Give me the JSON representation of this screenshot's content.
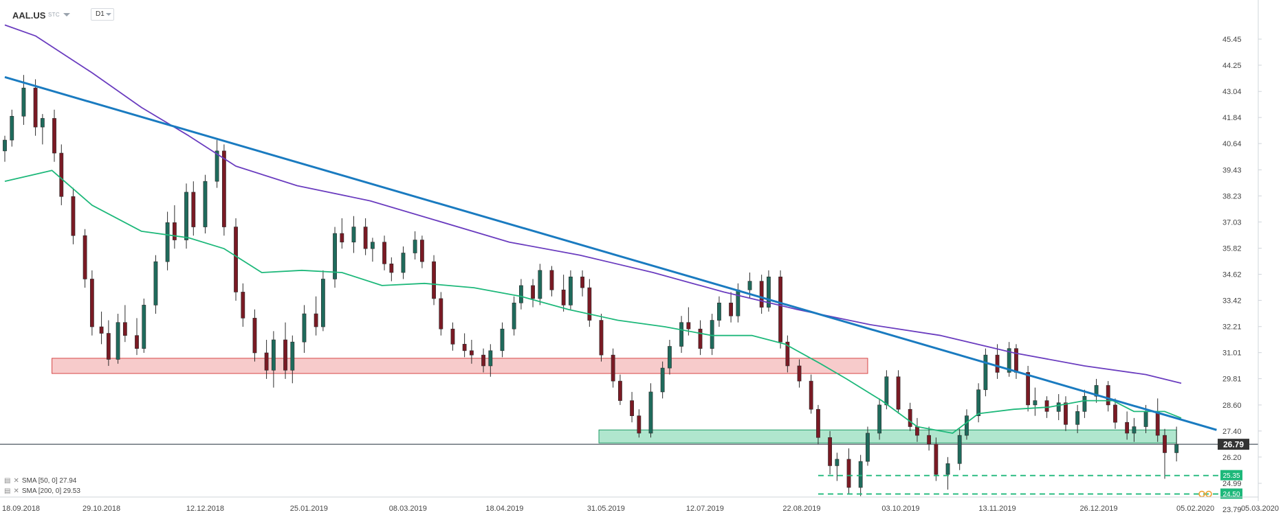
{
  "toolbar": {
    "symbol": "AAL.US",
    "symbol_sub": "STC",
    "timeframe": "D1"
  },
  "legend": {
    "sma50": "SMA [50, 0] 27.94",
    "sma200": "SMA [200, 0] 29.53"
  },
  "colors": {
    "bull": "#1f6b5c",
    "bear": "#7a1a24",
    "sma50": "#1db87a",
    "sma200": "#6a3cbf",
    "trendline": "#1a7bc0",
    "support_zone": "#6fd1a5",
    "resistance_zone": "#f0a0a0",
    "level_label": "#1db87a",
    "price_label": "#333333"
  },
  "chart_data": {
    "type": "candlestick",
    "y_ticks": [
      "45.45",
      "44.25",
      "43.04",
      "41.84",
      "40.64",
      "39.43",
      "38.23",
      "37.03",
      "35.82",
      "34.62",
      "33.42",
      "32.21",
      "31.01",
      "29.81",
      "28.60",
      "27.40",
      "26.20",
      "24.99",
      "23.79"
    ],
    "x_ticks": [
      "18.09.2018",
      "29.10.2018",
      "12.12.2018",
      "25.01.2019",
      "08.03.2019",
      "18.04.2019",
      "31.05.2019",
      "12.07.2019",
      "22.08.2019",
      "03.10.2019",
      "13.11.2019",
      "26.12.2019",
      "05.02.2020",
      "05.03.2020"
    ],
    "current_price": "26.79",
    "levels": [
      {
        "value": 25.35,
        "label": "25.35"
      },
      {
        "value": 24.5,
        "label": "24.50"
      }
    ],
    "zones": [
      {
        "name": "resistance",
        "from": "2018-10-08",
        "to": "2019-09-19",
        "low": 30.05,
        "high": 30.75
      },
      {
        "name": "support",
        "from": "2019-05-28",
        "to": "2020-01-28",
        "low": 26.85,
        "high": 27.45
      }
    ],
    "trendline": {
      "start": {
        "date": "2018-09-18",
        "value": 43.7
      },
      "end": {
        "date": "2020-02-14",
        "value": 27.45
      }
    },
    "sma50": [
      [
        "2018-09-18",
        38.9
      ],
      [
        "2018-10-08",
        39.4
      ],
      [
        "2018-10-25",
        37.8
      ],
      [
        "2018-11-15",
        36.6
      ],
      [
        "2018-12-05",
        36.3
      ],
      [
        "2018-12-20",
        35.8
      ],
      [
        "2019-01-05",
        34.7
      ],
      [
        "2019-01-22",
        34.8
      ],
      [
        "2019-02-08",
        34.7
      ],
      [
        "2019-02-25",
        34.1
      ],
      [
        "2019-03-15",
        34.2
      ],
      [
        "2019-04-05",
        34.0
      ],
      [
        "2019-04-25",
        33.6
      ],
      [
        "2019-05-15",
        33.0
      ],
      [
        "2019-06-05",
        32.5
      ],
      [
        "2019-06-25",
        32.2
      ],
      [
        "2019-07-15",
        31.8
      ],
      [
        "2019-08-01",
        31.8
      ],
      [
        "2019-08-15",
        31.4
      ],
      [
        "2019-08-30",
        30.5
      ],
      [
        "2019-09-10",
        29.8
      ],
      [
        "2019-09-25",
        28.8
      ],
      [
        "2019-10-10",
        27.6
      ],
      [
        "2019-10-25",
        27.3
      ],
      [
        "2019-11-05",
        28.2
      ],
      [
        "2019-11-20",
        28.4
      ],
      [
        "2019-12-05",
        28.5
      ],
      [
        "2019-12-20",
        28.8
      ],
      [
        "2020-01-01",
        28.8
      ],
      [
        "2020-01-10",
        28.3
      ],
      [
        "2020-01-23",
        28.3
      ],
      [
        "2020-01-30",
        28.0
      ]
    ],
    "sma200": [
      [
        "2018-09-18",
        46.1
      ],
      [
        "2018-10-01",
        45.6
      ],
      [
        "2018-10-25",
        43.9
      ],
      [
        "2018-11-15",
        42.3
      ],
      [
        "2018-12-05",
        41.0
      ],
      [
        "2018-12-25",
        39.6
      ],
      [
        "2019-01-20",
        38.7
      ],
      [
        "2019-02-20",
        38.0
      ],
      [
        "2019-03-20",
        37.1
      ],
      [
        "2019-04-20",
        36.1
      ],
      [
        "2019-05-20",
        35.5
      ],
      [
        "2019-06-20",
        34.7
      ],
      [
        "2019-07-20",
        33.8
      ],
      [
        "2019-08-20",
        33.0
      ],
      [
        "2019-09-20",
        32.3
      ],
      [
        "2019-10-20",
        31.8
      ],
      [
        "2019-11-20",
        31.0
      ],
      [
        "2019-12-20",
        30.4
      ],
      [
        "2020-01-15",
        30.0
      ],
      [
        "2020-01-30",
        29.6
      ]
    ],
    "ohlc": [
      [
        "2018-09-18",
        40.3,
        41.0,
        39.8,
        40.8
      ],
      [
        "2018-09-21",
        40.8,
        42.2,
        40.5,
        41.9
      ],
      [
        "2018-09-26",
        41.9,
        43.8,
        41.5,
        43.2
      ],
      [
        "2018-10-01",
        43.2,
        43.6,
        41.0,
        41.4
      ],
      [
        "2018-10-04",
        41.4,
        42.0,
        40.6,
        41.8
      ],
      [
        "2018-10-09",
        41.8,
        42.2,
        39.8,
        40.2
      ],
      [
        "2018-10-12",
        40.2,
        40.6,
        37.8,
        38.2
      ],
      [
        "2018-10-17",
        38.2,
        38.6,
        36.0,
        36.4
      ],
      [
        "2018-10-22",
        36.4,
        36.7,
        34.0,
        34.4
      ],
      [
        "2018-10-25",
        34.4,
        34.8,
        31.8,
        32.2
      ],
      [
        "2018-10-29",
        32.2,
        32.9,
        31.4,
        31.9
      ],
      [
        "2018-11-01",
        31.9,
        32.5,
        30.4,
        30.7
      ],
      [
        "2018-11-05",
        30.7,
        32.8,
        30.5,
        32.4
      ],
      [
        "2018-11-08",
        32.4,
        33.2,
        31.5,
        31.8
      ],
      [
        "2018-11-13",
        31.8,
        32.6,
        30.9,
        31.2
      ],
      [
        "2018-11-16",
        31.2,
        33.5,
        31.0,
        33.2
      ],
      [
        "2018-11-21",
        33.2,
        35.5,
        32.8,
        35.2
      ],
      [
        "2018-11-26",
        35.2,
        37.5,
        34.8,
        37.0
      ],
      [
        "2018-11-29",
        37.0,
        37.8,
        35.8,
        36.2
      ],
      [
        "2018-12-04",
        36.2,
        38.8,
        35.8,
        38.4
      ],
      [
        "2018-12-07",
        38.4,
        38.9,
        36.4,
        36.8
      ],
      [
        "2018-12-12",
        36.8,
        39.2,
        36.5,
        38.9
      ],
      [
        "2018-12-17",
        38.9,
        40.8,
        38.6,
        40.3
      ],
      [
        "2018-12-20",
        40.3,
        40.6,
        36.4,
        36.8
      ],
      [
        "2018-12-25",
        36.8,
        37.2,
        33.4,
        33.8
      ],
      [
        "2018-12-28",
        33.8,
        34.2,
        32.2,
        32.6
      ],
      [
        "2019-01-02",
        32.6,
        33.0,
        30.6,
        31.0
      ],
      [
        "2019-01-07",
        31.0,
        31.6,
        29.8,
        30.2
      ],
      [
        "2019-01-10",
        30.2,
        32.0,
        29.4,
        31.6
      ],
      [
        "2019-01-15",
        31.6,
        32.4,
        29.8,
        30.2
      ],
      [
        "2019-01-18",
        30.2,
        31.8,
        29.6,
        31.5
      ],
      [
        "2019-01-23",
        31.5,
        33.2,
        31.0,
        32.8
      ],
      [
        "2019-01-28",
        32.8,
        33.6,
        31.8,
        32.2
      ],
      [
        "2019-01-31",
        32.2,
        34.8,
        32.0,
        34.4
      ],
      [
        "2019-02-05",
        34.4,
        36.8,
        34.0,
        36.5
      ],
      [
        "2019-02-08",
        36.5,
        37.2,
        35.8,
        36.1
      ],
      [
        "2019-02-13",
        36.1,
        37.3,
        35.6,
        36.8
      ],
      [
        "2019-02-18",
        36.8,
        37.2,
        35.5,
        35.8
      ],
      [
        "2019-02-21",
        35.8,
        36.3,
        35.2,
        36.1
      ],
      [
        "2019-02-26",
        36.1,
        36.4,
        34.8,
        35.1
      ],
      [
        "2019-03-01",
        35.1,
        35.4,
        34.3,
        34.7
      ],
      [
        "2019-03-06",
        34.7,
        35.9,
        34.4,
        35.6
      ],
      [
        "2019-03-11",
        35.6,
        36.6,
        35.3,
        36.2
      ],
      [
        "2019-03-14",
        36.2,
        36.4,
        34.9,
        35.2
      ],
      [
        "2019-03-19",
        35.2,
        35.5,
        33.2,
        33.5
      ],
      [
        "2019-03-22",
        33.5,
        33.8,
        31.8,
        32.1
      ],
      [
        "2019-03-27",
        32.1,
        32.4,
        31.1,
        31.4
      ],
      [
        "2019-04-01",
        31.4,
        31.9,
        30.8,
        31.1
      ],
      [
        "2019-04-04",
        31.1,
        31.6,
        30.5,
        30.9
      ],
      [
        "2019-04-09",
        30.9,
        31.2,
        30.1,
        30.4
      ],
      [
        "2019-04-12",
        30.4,
        31.4,
        29.9,
        31.1
      ],
      [
        "2019-04-17",
        31.1,
        32.4,
        30.8,
        32.1
      ],
      [
        "2019-04-22",
        32.1,
        33.6,
        31.8,
        33.3
      ],
      [
        "2019-04-25",
        33.3,
        34.4,
        33.0,
        34.1
      ],
      [
        "2019-04-30",
        34.1,
        34.4,
        33.1,
        33.5
      ],
      [
        "2019-05-03",
        33.5,
        35.1,
        33.2,
        34.8
      ],
      [
        "2019-05-08",
        34.8,
        35.0,
        33.6,
        33.9
      ],
      [
        "2019-05-13",
        33.9,
        34.6,
        32.9,
        33.2
      ],
      [
        "2019-05-16",
        33.2,
        34.8,
        33.0,
        34.5
      ],
      [
        "2019-05-21",
        34.5,
        34.8,
        33.6,
        34.0
      ],
      [
        "2019-05-24",
        34.0,
        34.4,
        32.2,
        32.5
      ],
      [
        "2019-05-29",
        32.5,
        32.8,
        30.6,
        30.9
      ],
      [
        "2019-06-03",
        30.9,
        31.2,
        29.4,
        29.7
      ],
      [
        "2019-06-06",
        29.7,
        30.0,
        28.6,
        28.8
      ],
      [
        "2019-06-11",
        28.8,
        29.2,
        27.8,
        28.1
      ],
      [
        "2019-06-14",
        28.1,
        28.4,
        27.1,
        27.3
      ],
      [
        "2019-06-19",
        27.3,
        29.6,
        27.1,
        29.2
      ],
      [
        "2019-06-24",
        29.2,
        30.6,
        28.9,
        30.3
      ],
      [
        "2019-06-27",
        30.3,
        31.6,
        30.0,
        31.3
      ],
      [
        "2019-07-02",
        31.3,
        32.7,
        31.0,
        32.4
      ],
      [
        "2019-07-05",
        32.4,
        33.1,
        31.8,
        32.1
      ],
      [
        "2019-07-10",
        32.1,
        32.5,
        30.9,
        31.2
      ],
      [
        "2019-07-15",
        31.2,
        32.8,
        30.9,
        32.5
      ],
      [
        "2019-07-18",
        32.5,
        33.6,
        32.2,
        33.3
      ],
      [
        "2019-07-23",
        33.3,
        33.8,
        32.4,
        32.7
      ],
      [
        "2019-07-26",
        32.7,
        34.2,
        32.4,
        33.9
      ],
      [
        "2019-07-31",
        33.9,
        34.7,
        33.5,
        34.3
      ],
      [
        "2019-08-05",
        34.3,
        34.6,
        32.8,
        33.1
      ],
      [
        "2019-08-08",
        33.1,
        34.8,
        32.9,
        34.5
      ],
      [
        "2019-08-13",
        34.5,
        34.8,
        31.2,
        31.5
      ],
      [
        "2019-08-16",
        31.5,
        31.8,
        30.1,
        30.4
      ],
      [
        "2019-08-21",
        30.4,
        30.7,
        29.4,
        29.7
      ],
      [
        "2019-08-26",
        29.7,
        30.0,
        28.2,
        28.4
      ],
      [
        "2019-08-29",
        28.4,
        28.6,
        26.8,
        27.1
      ],
      [
        "2019-09-03",
        27.1,
        27.4,
        25.4,
        25.8
      ],
      [
        "2019-09-06",
        25.8,
        26.4,
        25.1,
        26.1
      ],
      [
        "2019-09-11",
        26.1,
        26.6,
        24.5,
        24.8
      ],
      [
        "2019-09-16",
        24.8,
        26.3,
        24.4,
        26.0
      ],
      [
        "2019-09-19",
        26.0,
        27.6,
        25.8,
        27.3
      ],
      [
        "2019-09-24",
        27.3,
        28.9,
        27.0,
        28.6
      ],
      [
        "2019-09-27",
        28.6,
        30.2,
        28.4,
        29.9
      ],
      [
        "2019-10-02",
        29.9,
        30.2,
        28.2,
        28.4
      ],
      [
        "2019-10-07",
        28.4,
        28.7,
        27.4,
        27.6
      ],
      [
        "2019-10-10",
        27.6,
        28.0,
        26.9,
        27.2
      ],
      [
        "2019-10-15",
        27.2,
        27.6,
        26.5,
        26.8
      ],
      [
        "2019-10-18",
        26.8,
        27.1,
        25.1,
        25.4
      ],
      [
        "2019-10-23",
        25.4,
        26.2,
        24.7,
        25.9
      ],
      [
        "2019-10-28",
        25.9,
        27.5,
        25.6,
        27.2
      ],
      [
        "2019-10-31",
        27.2,
        28.4,
        27.0,
        28.1
      ],
      [
        "2019-11-05",
        28.1,
        29.6,
        27.8,
        29.3
      ],
      [
        "2019-11-08",
        29.3,
        31.2,
        29.0,
        30.9
      ],
      [
        "2019-11-13",
        30.9,
        31.4,
        29.8,
        30.1
      ],
      [
        "2019-11-18",
        30.1,
        31.5,
        29.9,
        31.2
      ],
      [
        "2019-11-21",
        31.2,
        31.4,
        29.8,
        30.1
      ],
      [
        "2019-11-26",
        30.1,
        30.4,
        28.3,
        28.6
      ],
      [
        "2019-11-29",
        28.6,
        29.4,
        28.1,
        28.8
      ],
      [
        "2019-12-04",
        28.8,
        29.0,
        28.0,
        28.3
      ],
      [
        "2019-12-09",
        28.3,
        29.1,
        27.9,
        28.7
      ],
      [
        "2019-12-12",
        28.7,
        29.0,
        27.4,
        27.7
      ],
      [
        "2019-12-17",
        27.7,
        28.6,
        27.3,
        28.3
      ],
      [
        "2019-12-20",
        28.3,
        29.3,
        28.0,
        29.0
      ],
      [
        "2019-12-25",
        29.0,
        29.8,
        28.7,
        29.5
      ],
      [
        "2019-12-30",
        29.5,
        29.7,
        28.3,
        28.6
      ],
      [
        "2020-01-02",
        28.6,
        28.9,
        27.5,
        27.8
      ],
      [
        "2020-01-07",
        27.8,
        28.3,
        27.0,
        27.3
      ],
      [
        "2020-01-10",
        27.3,
        28.0,
        26.9,
        27.6
      ],
      [
        "2020-01-15",
        27.6,
        28.6,
        27.3,
        28.3
      ],
      [
        "2020-01-20",
        28.3,
        28.9,
        26.9,
        27.2
      ],
      [
        "2020-01-23",
        27.2,
        27.5,
        25.2,
        26.4
      ],
      [
        "2020-01-28",
        26.4,
        27.6,
        26.0,
        26.79
      ]
    ]
  }
}
